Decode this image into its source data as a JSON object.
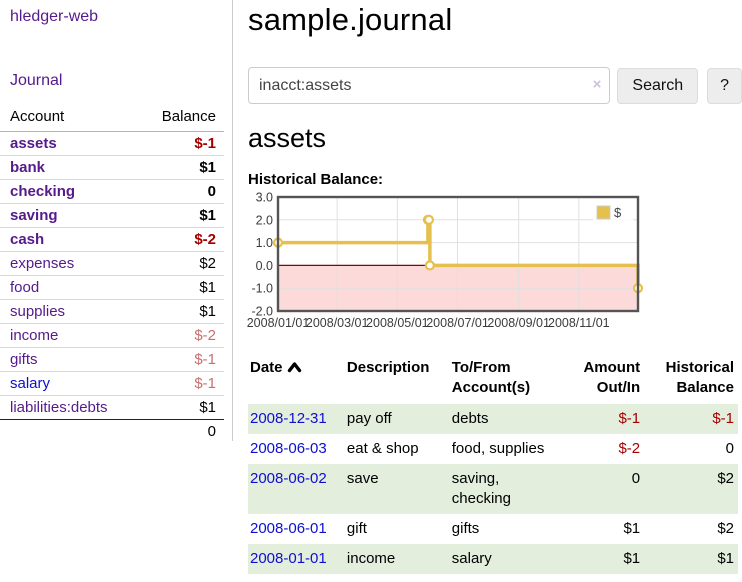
{
  "sidebar": {
    "app_title": "hledger-web",
    "journal_link": "Journal",
    "accounts": {
      "headers": {
        "account": "Account",
        "balance": "Balance"
      },
      "rows": [
        {
          "name": "assets",
          "balance": "$-1",
          "depth": 0
        },
        {
          "name": "bank",
          "balance": "$1",
          "depth": 1
        },
        {
          "name": "checking",
          "balance": "0",
          "depth": 2
        },
        {
          "name": "saving",
          "balance": "$1",
          "depth": 2
        },
        {
          "name": "cash",
          "balance": "$-2",
          "depth": 1
        },
        {
          "name": "expenses",
          "balance": "$2",
          "depth": 0
        },
        {
          "name": "food",
          "balance": "$1",
          "depth": 1
        },
        {
          "name": "supplies",
          "balance": "$1",
          "depth": 1
        },
        {
          "name": "income",
          "balance": "$-2",
          "depth": 0
        },
        {
          "name": "gifts",
          "balance": "$-1",
          "depth": 1
        },
        {
          "name": "salary",
          "balance": "$-1",
          "depth": 1
        },
        {
          "name": "liabilities:debts",
          "balance": "$1",
          "depth": 0
        }
      ],
      "total": "0"
    }
  },
  "main": {
    "title": "sample.journal",
    "search": {
      "value": "inacct:assets",
      "clear_icon": "×",
      "button_label": "Search",
      "help_label": "?"
    },
    "account_heading": "assets",
    "chart_heading": "Historical Balance:",
    "register": {
      "headers": {
        "date": "Date",
        "sort_icon": "chevron-up",
        "description": "Description",
        "accounts": "To/From Account(s)",
        "amount": "Amount Out/In",
        "balance": "Historical Balance"
      },
      "rows": [
        {
          "date": "2008-12-31",
          "description": "pay off",
          "accounts": "debts",
          "amount": "$-1",
          "balance": "$-1"
        },
        {
          "date": "2008-06-03",
          "description": "eat & shop",
          "accounts": "food, supplies",
          "amount": "$-2",
          "balance": "0"
        },
        {
          "date": "2008-06-02",
          "description": "save",
          "accounts": "saving, checking",
          "amount": "0",
          "balance": "$2"
        },
        {
          "date": "2008-06-01",
          "description": "gift",
          "accounts": "gifts",
          "amount": "$1",
          "balance": "$2"
        },
        {
          "date": "2008-01-01",
          "description": "income",
          "accounts": "salary",
          "amount": "$1",
          "balance": "$1"
        }
      ]
    }
  },
  "chart_data": {
    "type": "line",
    "style": "step",
    "title": "Historical Balance",
    "legend": "$",
    "legend_position": "top-right",
    "grid": true,
    "series": [
      {
        "name": "$",
        "color": "#e6c04d",
        "points": [
          {
            "date": "2008-01-01",
            "day": 0,
            "value": 1
          },
          {
            "date": "2008-06-01",
            "day": 152,
            "value": 2
          },
          {
            "date": "2008-06-02",
            "day": 153,
            "value": 2
          },
          {
            "date": "2008-06-03",
            "day": 154,
            "value": 0
          },
          {
            "date": "2008-12-31",
            "day": 365,
            "value": -1
          }
        ]
      }
    ],
    "x_range_days": [
      0,
      365
    ],
    "y_range": [
      -2,
      3
    ],
    "x_ticks": [
      {
        "label": "2008/01/01",
        "day": 0
      },
      {
        "label": "2008/03/01",
        "day": 60
      },
      {
        "label": "2008/05/01",
        "day": 121
      },
      {
        "label": "2008/07/01",
        "day": 182
      },
      {
        "label": "2008/09/01",
        "day": 244
      },
      {
        "label": "2008/11/01",
        "day": 305
      }
    ],
    "y_ticks": [
      {
        "label": "3.0",
        "value": 3
      },
      {
        "label": "2.0",
        "value": 2
      },
      {
        "label": "1.0",
        "value": 1
      },
      {
        "label": "0.0",
        "value": 0
      },
      {
        "label": "-1.0",
        "value": -1
      },
      {
        "label": "-2.0",
        "value": -2
      }
    ],
    "negative_region_color": "#fcdada",
    "zero_line_color": "#8b0000",
    "grid_color": "#e0e0e0",
    "border_color": "#545454",
    "marker_fill": "#ffffff"
  },
  "colors": {
    "link_purple": "#551a8b",
    "link_blue": "#0f0fcf",
    "negative_strong": "#a40000",
    "negative_soft": "#c76f6f",
    "row_stripe_green": "#e3eedd",
    "chart_gold": "#e6c04d"
  }
}
